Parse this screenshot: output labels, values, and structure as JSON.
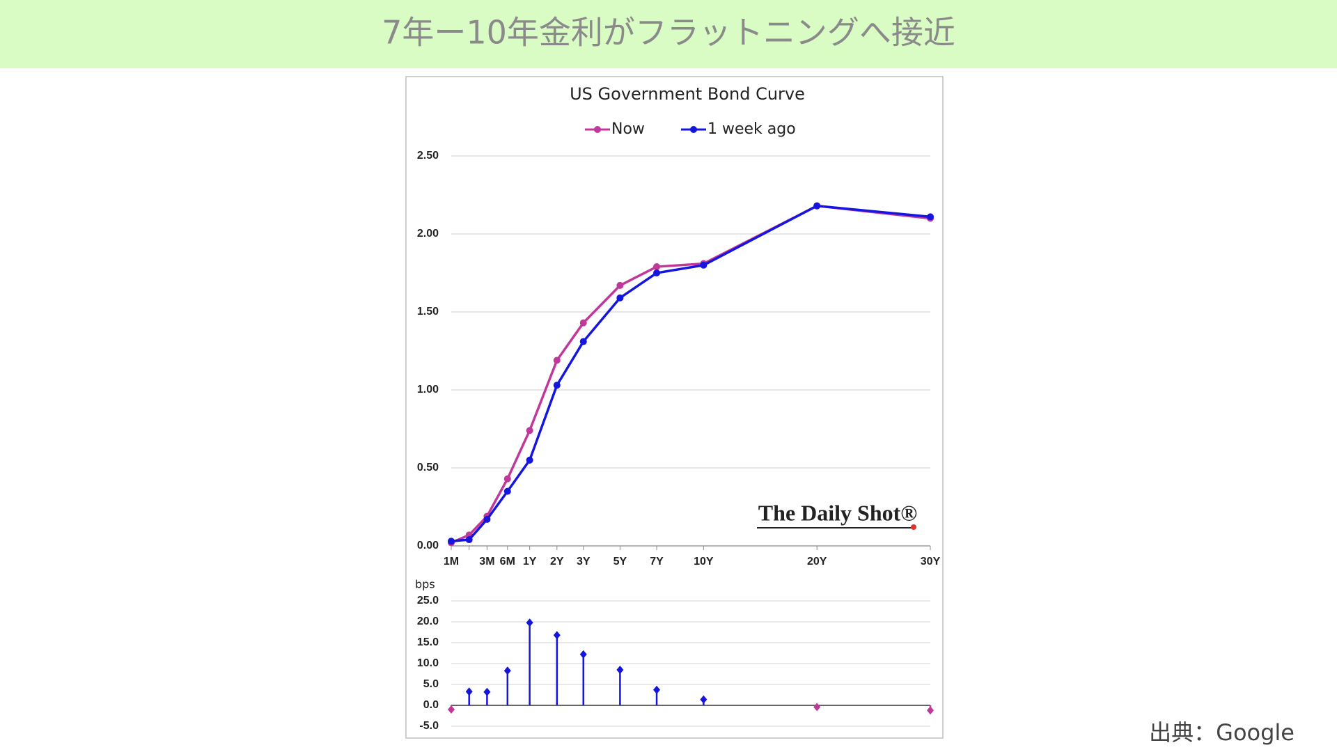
{
  "title": "7年ー10年金利がフラットニングへ接近",
  "source": "出典：Google",
  "chart_data": [
    {
      "type": "line",
      "title": "US Government Bond Curve",
      "categories": [
        "1M",
        null,
        "3M",
        "6M",
        "1Y",
        "2Y",
        "3Y",
        "5Y",
        "7Y",
        "10Y",
        "20Y",
        "30Y"
      ],
      "series": [
        {
          "name": "Now",
          "color": "#c0399a",
          "values": [
            0.02,
            0.07,
            0.19,
            0.43,
            0.74,
            1.19,
            1.43,
            1.67,
            1.79,
            1.81,
            2.18,
            2.1
          ]
        },
        {
          "name": "1 week ago",
          "color": "#1515e0",
          "values": [
            0.03,
            0.04,
            0.17,
            0.35,
            0.55,
            1.03,
            1.31,
            1.59,
            1.75,
            1.8,
            2.18,
            2.11
          ]
        }
      ],
      "ylim": [
        0,
        2.5
      ],
      "yticks": [
        {
          "value": 0,
          "label": "0.00"
        },
        {
          "value": 0.5,
          "label": "0.50"
        },
        {
          "value": 1,
          "label": "1.00"
        },
        {
          "value": 1.5,
          "label": "1.50"
        },
        {
          "value": 2,
          "label": "2.00"
        },
        {
          "value": 2.5,
          "label": "2.50"
        }
      ],
      "grid": true,
      "legend": "top",
      "watermark": "The Daily Shot®"
    },
    {
      "type": "stem",
      "y_label": "bps",
      "values": [
        -1.0,
        3.3,
        3.2,
        8.3,
        19.8,
        16.8,
        12.2,
        8.5,
        3.7,
        1.4,
        -0.4,
        -1.2
      ],
      "color": "#1515e0",
      "negative_color": "#c0399a",
      "ylim": [
        -5,
        25
      ],
      "yticks": [
        {
          "value": -5,
          "label": "-5.0"
        },
        {
          "value": 0,
          "label": "0.0"
        },
        {
          "value": 5,
          "label": "5.0"
        },
        {
          "value": 10,
          "label": "10.0"
        },
        {
          "value": 15,
          "label": "15.0"
        },
        {
          "value": 20,
          "label": "20.0"
        },
        {
          "value": 25,
          "label": "25.0"
        }
      ],
      "grid": true
    }
  ]
}
